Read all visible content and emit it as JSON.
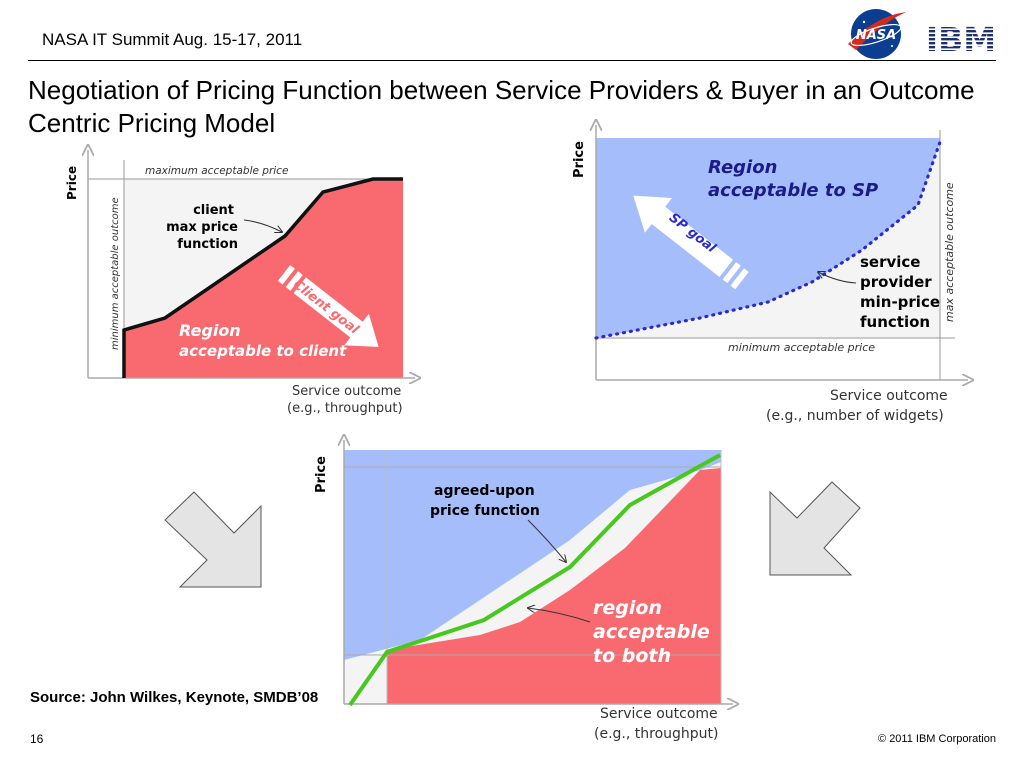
{
  "header": {
    "event": "NASA IT Summit  Aug. 15-17, 2011"
  },
  "title": "Negotiation of Pricing Function between Service Providers & Buyer in an Outcome Centric Pricing Model",
  "logos": {
    "nasa": "NASA",
    "ibm": "IBM"
  },
  "diagram_client": {
    "y_axis": "Price",
    "top_line": "maximum acceptable price",
    "left_line": "minimum acceptable outcome",
    "annotation": [
      "client",
      "max price",
      "function"
    ],
    "arrow": "Client goal",
    "region": [
      "Region",
      "acceptable to client"
    ],
    "x_axis": [
      "Service outcome",
      "(e.g., throughput)"
    ]
  },
  "diagram_sp": {
    "y_axis": "Price",
    "region": [
      "Region",
      "acceptable to SP"
    ],
    "arrow": "SP goal",
    "annotation": [
      "service",
      "provider",
      "min-price",
      "function"
    ],
    "right_line": "max acceptable outcome",
    "bottom_line": "minimum acceptable price",
    "x_axis": [
      "Service outcome",
      "(e.g., number of widgets)"
    ]
  },
  "diagram_both": {
    "y_axis": "Price",
    "annotation": [
      "agreed-upon",
      "price function"
    ],
    "region": [
      "region",
      "acceptable",
      "to both"
    ],
    "x_axis": [
      "Service outcome",
      "(e.g., throughput)"
    ]
  },
  "source": "Source: John Wilkes, Keynote, SMDB’08",
  "page_number": "16",
  "copyright": "© 2011 IBM Corporation",
  "colors": {
    "red_region": "#f96a70",
    "blue_region": "#a6bdfb",
    "green_line": "#46c81e",
    "sp_dots": "#2a2ad0",
    "grey_arrow": "#e4e4e4"
  }
}
